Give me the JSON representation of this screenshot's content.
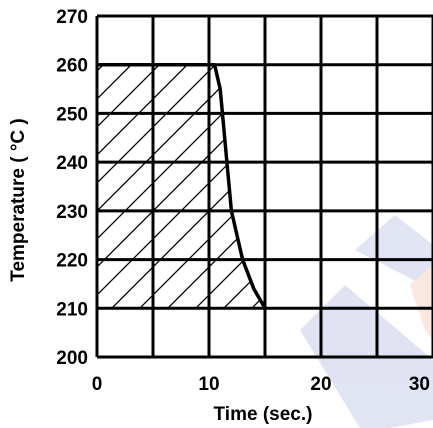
{
  "chart_data": {
    "type": "line",
    "title": "",
    "xlabel": "Time (sec.)",
    "ylabel": "Temperature ( °C )",
    "xlim": [
      0,
      30
    ],
    "ylim": [
      200,
      270
    ],
    "x_ticks": [
      "0",
      "10",
      "20",
      "30"
    ],
    "y_ticks": [
      "200",
      "210",
      "220",
      "230",
      "240",
      "250",
      "260",
      "270"
    ],
    "grid": true,
    "grid_x_step_sec": 5,
    "grid_y_step_c": 10,
    "series": [
      {
        "points": [
          {
            "x": 0,
            "y": 260
          },
          {
            "x": 10.5,
            "y": 260
          },
          {
            "x": 11,
            "y": 255
          },
          {
            "x": 12,
            "y": 230
          },
          {
            "x": 13,
            "y": 220
          },
          {
            "x": 14,
            "y": 214
          },
          {
            "x": 15,
            "y": 210
          }
        ]
      }
    ],
    "shaded_region": {
      "pattern": "diagonal-hatch",
      "x_range": [
        0,
        15
      ],
      "y_range": [
        210,
        260
      ]
    },
    "colors": {
      "line": "#000000",
      "grid": "#000000",
      "watermark_blue": "#c9cdea",
      "watermark_orange": "#f6d4c2"
    }
  }
}
